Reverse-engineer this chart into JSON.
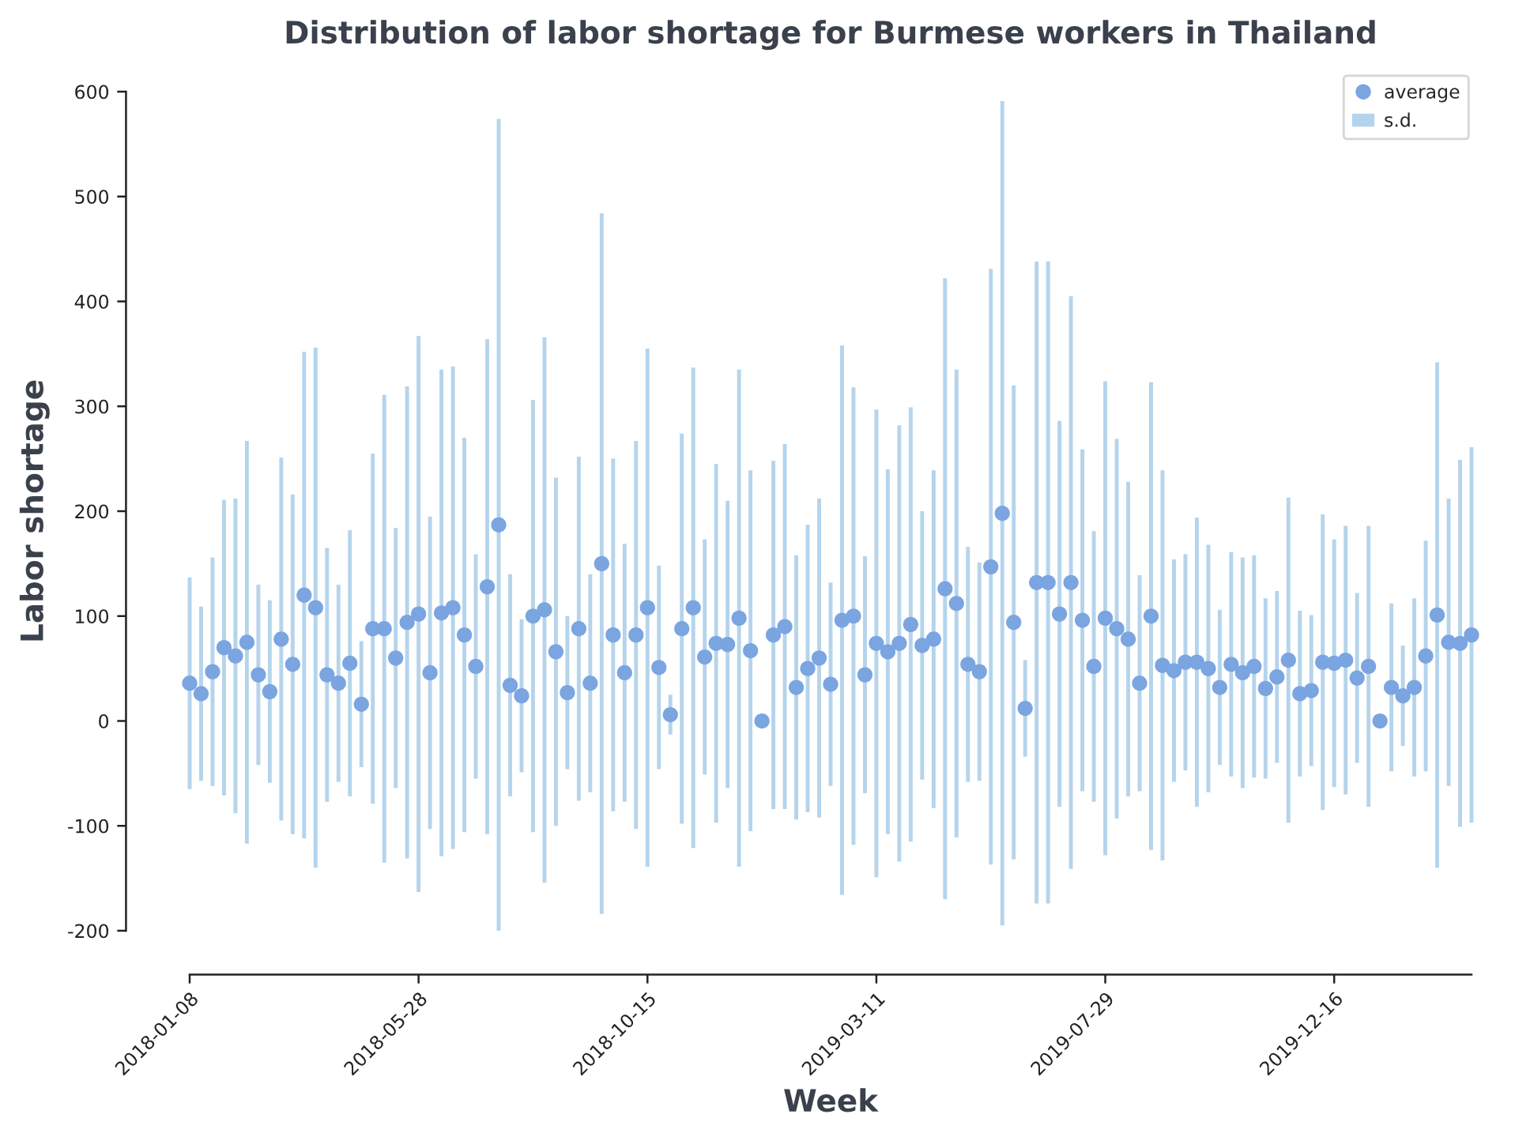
{
  "chart_data": {
    "type": "scatter",
    "title": "Distribution of labor shortage for Burmese workers in Thailand",
    "xlabel": "Week",
    "ylabel": "Labor shortage",
    "categories": [
      "2018-01-08",
      null,
      null,
      null,
      null,
      null,
      null,
      null,
      null,
      null,
      null,
      null,
      null,
      null,
      null,
      null,
      null,
      null,
      null,
      null,
      "2018-05-28",
      null,
      null,
      null,
      null,
      null,
      null,
      null,
      null,
      null,
      null,
      null,
      null,
      null,
      null,
      null,
      null,
      null,
      null,
      null,
      "2018-10-15",
      null,
      null,
      null,
      null,
      null,
      null,
      null,
      null,
      null,
      null,
      null,
      null,
      null,
      null,
      null,
      null,
      null,
      null,
      null,
      "2019-03-11",
      null,
      null,
      null,
      null,
      null,
      null,
      null,
      null,
      null,
      null,
      null,
      null,
      null,
      null,
      null,
      null,
      null,
      null,
      null,
      "2019-07-29",
      null,
      null,
      null,
      null,
      null,
      null,
      null,
      null,
      null,
      null,
      null,
      null,
      null,
      null,
      null,
      null,
      null,
      null,
      null,
      "2019-12-16",
      null,
      null,
      null,
      null,
      null,
      null,
      null,
      null,
      null,
      null,
      null,
      null
    ],
    "series": [
      {
        "name": "average",
        "color": "#7aa5e0",
        "values": [
          36,
          26,
          47,
          70,
          62,
          75,
          44,
          28,
          78,
          54,
          120,
          108,
          44,
          36,
          55,
          16,
          88,
          88,
          60,
          94,
          102,
          46,
          103,
          108,
          82,
          52,
          128,
          187,
          34,
          24,
          100,
          106,
          66,
          27,
          88,
          36,
          150,
          82,
          46,
          82,
          108,
          51,
          6,
          88,
          108,
          61,
          74,
          73,
          98,
          67,
          0,
          82,
          90,
          32,
          50,
          60,
          35,
          96,
          100,
          44,
          74,
          66,
          74,
          92,
          72,
          78,
          126,
          112,
          54,
          47,
          147,
          198,
          94,
          12,
          132,
          132,
          102,
          132,
          96,
          52,
          98,
          88,
          78,
          36,
          100,
          53,
          48,
          56,
          56,
          50,
          32,
          54,
          46,
          52,
          31,
          42,
          58,
          26,
          29,
          56,
          55,
          58,
          41,
          52,
          0,
          32,
          24,
          32,
          62,
          101,
          75,
          74,
          82
        ]
      },
      {
        "name": "s.d.",
        "type": "bar",
        "color": "#b5d4ec",
        "base": [
          -65,
          -57,
          -62,
          -71,
          -88,
          -117,
          -42,
          -59,
          -95,
          -108,
          -112,
          -140,
          -77,
          -58,
          -72,
          -44,
          -79,
          -135,
          -64,
          -131,
          -163,
          -103,
          -129,
          -122,
          -106,
          -55,
          -108,
          -200,
          -72,
          -49,
          -106,
          -154,
          -100,
          -46,
          -76,
          -68,
          -184,
          -86,
          -77,
          -103,
          -139,
          -46,
          -13,
          -98,
          -121,
          -51,
          -97,
          -64,
          -139,
          -105,
          null,
          -84,
          -84,
          -94,
          -87,
          -92,
          -62,
          -166,
          -118,
          -69,
          -149,
          -108,
          -134,
          -115,
          -56,
          -83,
          -170,
          -111,
          -58,
          -57,
          -137,
          -195,
          -132,
          -34,
          -174,
          -174,
          -82,
          -141,
          -67,
          -77,
          -128,
          -93,
          -72,
          -67,
          -123,
          -133,
          -58,
          -47,
          -82,
          -68,
          -42,
          -53,
          -64,
          -54,
          -55,
          -40,
          -97,
          -53,
          -43,
          -85,
          -63,
          -70,
          -40,
          -82,
          null,
          -48,
          -24,
          -53,
          -48,
          -140,
          -62,
          -101,
          -97
        ],
        "values": [
          202,
          166,
          218,
          282,
          300,
          384,
          172,
          174,
          346,
          324,
          464,
          496,
          242,
          188,
          254,
          120,
          334,
          446,
          248,
          450,
          530,
          298,
          464,
          460,
          376,
          214,
          472,
          774,
          212,
          146,
          412,
          520,
          332,
          146,
          328,
          208,
          668,
          336,
          246,
          370,
          494,
          194,
          38,
          372,
          458,
          224,
          342,
          274,
          474,
          344,
          null,
          332,
          348,
          252,
          274,
          304,
          194,
          524,
          436,
          226,
          446,
          348,
          416,
          414,
          256,
          322,
          592,
          446,
          224,
          208,
          568,
          786,
          452,
          92,
          612,
          612,
          368,
          546,
          326,
          258,
          452,
          362,
          300,
          206,
          446,
          372,
          212,
          206,
          276,
          236,
          148,
          214,
          220,
          212,
          172,
          164,
          310,
          158,
          144,
          282,
          236,
          256,
          162,
          268,
          null,
          160,
          96,
          170,
          220,
          482,
          274,
          350,
          358
        ]
      }
    ],
    "marker": "circle",
    "ylim": [
      -200,
      600
    ],
    "yticks": [
      -200,
      -100,
      0,
      100,
      200,
      300,
      400,
      500,
      600
    ],
    "legend": "top right"
  }
}
